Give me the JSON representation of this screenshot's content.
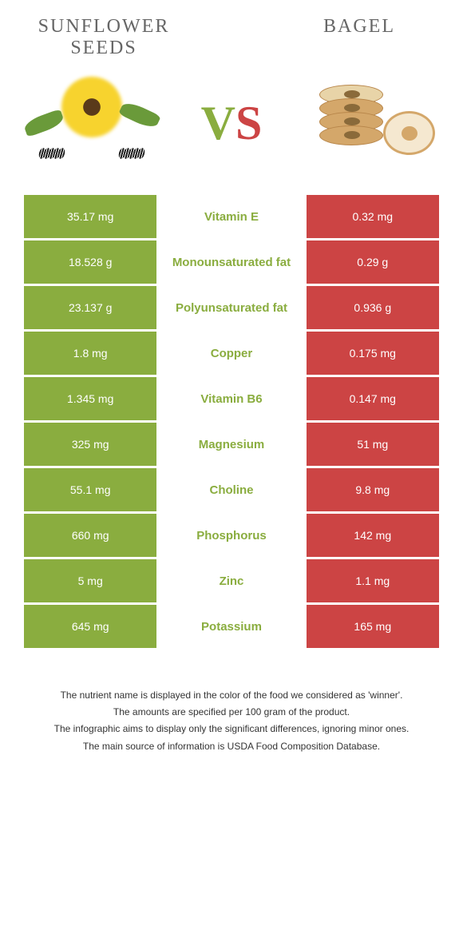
{
  "header": {
    "left_title": "SUNFLOWER SEEDS",
    "right_title": "BAGEL",
    "vs_v": "V",
    "vs_s": "S"
  },
  "colors": {
    "left": "#8aad3f",
    "right": "#cc4444",
    "nutrient_text": "#8aad3f"
  },
  "rows": [
    {
      "left": "35.17 mg",
      "nutrient": "Vitamin E",
      "right": "0.32 mg"
    },
    {
      "left": "18.528 g",
      "nutrient": "Monounsaturated fat",
      "right": "0.29 g"
    },
    {
      "left": "23.137 g",
      "nutrient": "Polyunsaturated fat",
      "right": "0.936 g"
    },
    {
      "left": "1.8 mg",
      "nutrient": "Copper",
      "right": "0.175 mg"
    },
    {
      "left": "1.345 mg",
      "nutrient": "Vitamin B6",
      "right": "0.147 mg"
    },
    {
      "left": "325 mg",
      "nutrient": "Magnesium",
      "right": "51 mg"
    },
    {
      "left": "55.1 mg",
      "nutrient": "Choline",
      "right": "9.8 mg"
    },
    {
      "left": "660 mg",
      "nutrient": "Phosphorus",
      "right": "142 mg"
    },
    {
      "left": "5 mg",
      "nutrient": "Zinc",
      "right": "1.1 mg"
    },
    {
      "left": "645 mg",
      "nutrient": "Potassium",
      "right": "165 mg"
    }
  ],
  "footnotes": {
    "l1": "The nutrient name is displayed in the color of the food we considered as 'winner'.",
    "l2": "The amounts are specified per 100 gram of the product.",
    "l3": "The infographic aims to display only the significant differences, ignoring minor ones.",
    "l4": "The main source of information is USDA Food Composition Database."
  }
}
